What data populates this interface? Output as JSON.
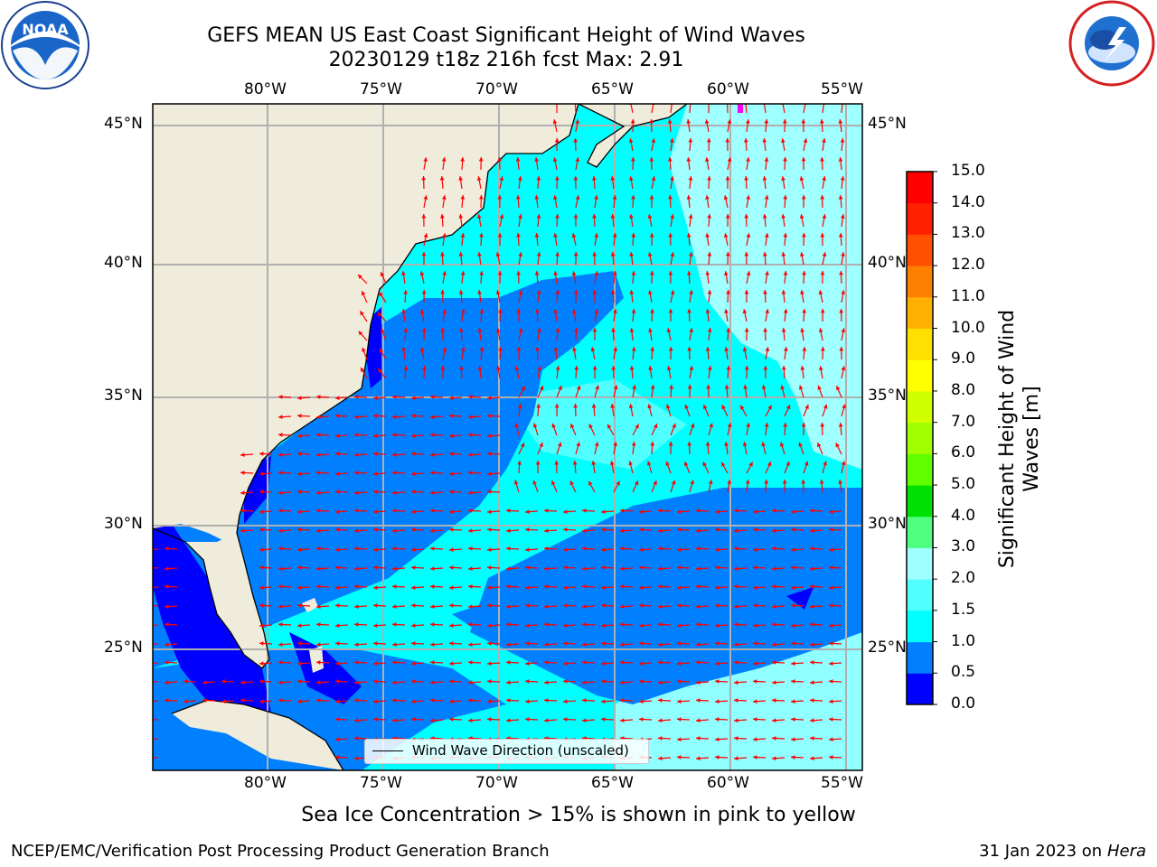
{
  "header": {
    "title_line1": "GEFS MEAN US East Coast Significant Height of Wind Waves",
    "title_line2": "20230129 t18z 216h fcst   Max: 2.91"
  },
  "logos": {
    "left": "NOAA",
    "left_ring": "NATIONAL OCEANIC AND ATMOSPHERIC ADMINISTRATION · U.S. DEPARTMENT OF COMMERCE",
    "right_ring": "NATIONAL WEATHER SERVICE"
  },
  "map": {
    "lon_labels": [
      "80°W",
      "75°W",
      "70°W",
      "65°W",
      "60°W",
      "55°W"
    ],
    "lat_labels": [
      "45°N",
      "40°N",
      "35°N",
      "30°N",
      "25°N"
    ],
    "legend": "Wind Wave Direction (unscaled)",
    "land_color": "#efecdc",
    "grid_color": "#b0b0b0",
    "arrow_color": "#ff0000"
  },
  "colorbar": {
    "label": "Significant Height of Wind Waves [m]",
    "ticks": [
      "0.0",
      "0.5",
      "1.0",
      "1.5",
      "2.0",
      "3.0",
      "4.0",
      "5.0",
      "6.0",
      "7.0",
      "8.0",
      "9.0",
      "10.0",
      "11.0",
      "12.0",
      "13.0",
      "14.0",
      "15.0"
    ],
    "colors": [
      "#0000ff",
      "#0080ff",
      "#00ffff",
      "#50ffff",
      "#a0ffff",
      "#50ff80",
      "#00e000",
      "#60ff00",
      "#a0ff00",
      "#d0ff00",
      "#ffff00",
      "#ffe000",
      "#ffb000",
      "#ff8000",
      "#ff5000",
      "#ff2000",
      "#ff0000"
    ]
  },
  "footer": {
    "subtitle": "Sea Ice Concentration > 15% is shown in pink to yellow",
    "left": "NCEP/EMC/Verification Post Processing Product Generation Branch",
    "date": "31 Jan 2023 on",
    "host": "Hera"
  }
}
